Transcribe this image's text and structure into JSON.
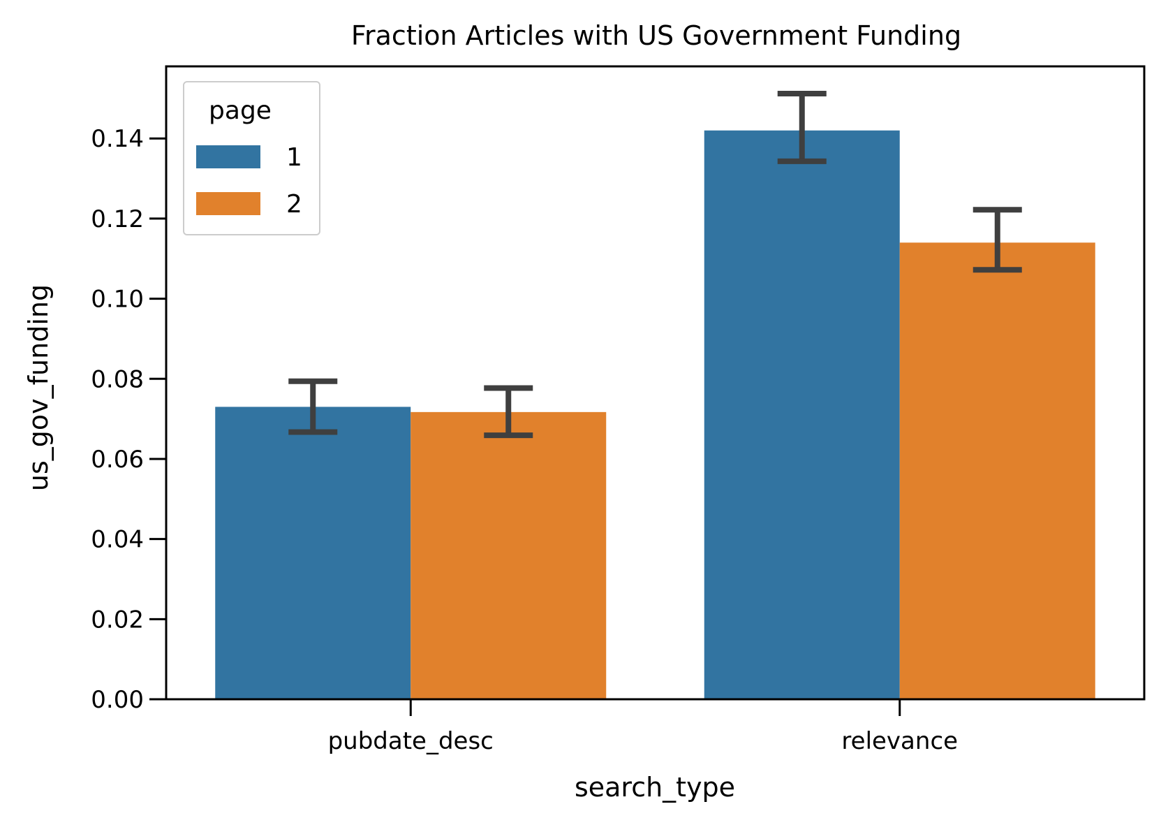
{
  "chart_data": {
    "type": "bar",
    "title": "Fraction Articles with US Government Funding",
    "xlabel": "search_type",
    "ylabel": "us_gov_funding",
    "categories": [
      "pubdate_desc",
      "relevance"
    ],
    "ylim": [
      0,
      0.158
    ],
    "yticks": [
      0.0,
      0.02,
      0.04,
      0.06,
      0.08,
      0.1,
      0.12,
      0.14
    ],
    "ytick_labels": [
      "0.00",
      "0.02",
      "0.04",
      "0.06",
      "0.08",
      "0.10",
      "0.12",
      "0.14"
    ],
    "grid": false,
    "legend": {
      "title": "page",
      "placement": "top-left"
    },
    "series": [
      {
        "name": "1",
        "color": "#3274a1",
        "values": [
          0.073,
          0.142
        ],
        "ci_low": [
          0.0667,
          0.1343
        ],
        "ci_high": [
          0.0794,
          0.1512
        ]
      },
      {
        "name": "2",
        "color": "#e1812c",
        "values": [
          0.0717,
          0.114
        ],
        "ci_low": [
          0.0659,
          0.1072
        ],
        "ci_high": [
          0.0777,
          0.1222
        ]
      }
    ],
    "errorbar_color": "#3f3f3f"
  }
}
